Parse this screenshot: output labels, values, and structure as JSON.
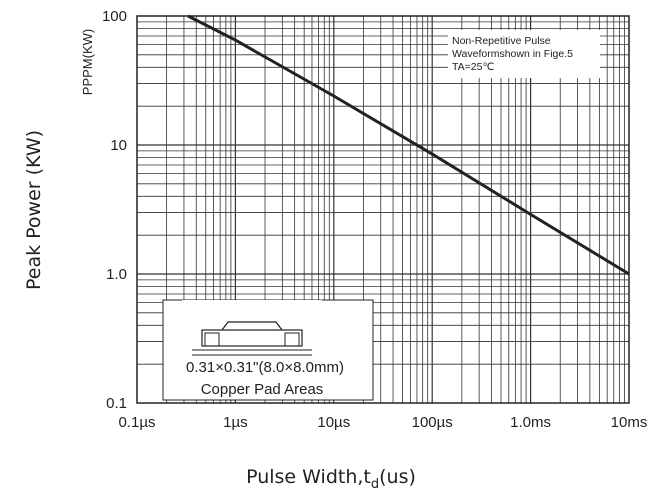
{
  "chart_data": {
    "type": "line",
    "title": "",
    "xlabel": "Pulse Width,t",
    "xlabel_subscript": "d",
    "xlabel_suffix": "(us)",
    "ylabel": "Peak Power (KW)",
    "ylabel_top": "PPPM(KW)",
    "x_scale": "log",
    "y_scale": "log",
    "xlim_us": [
      0.1,
      10000
    ],
    "ylim_kw": [
      0.1,
      100
    ],
    "x_ticks": [
      {
        "value_us": 0.1,
        "label": "0.1µs"
      },
      {
        "value_us": 1,
        "label": "1µs"
      },
      {
        "value_us": 10,
        "label": "10µs"
      },
      {
        "value_us": 100,
        "label": "100µs"
      },
      {
        "value_us": 1000,
        "label": "1.0ms"
      },
      {
        "value_us": 10000,
        "label": "10ms"
      }
    ],
    "y_ticks": [
      {
        "value_kw": 100,
        "label": "100"
      },
      {
        "value_kw": 10,
        "label": "10"
      },
      {
        "value_kw": 1,
        "label": "1.0"
      },
      {
        "value_kw": 0.1,
        "label": "0.1"
      }
    ],
    "grid": true,
    "series": [
      {
        "x_us": [
          0.33,
          1,
          10,
          100,
          1000,
          10000
        ],
        "y_kw": [
          100,
          65,
          24,
          8.5,
          2.9,
          1.0
        ]
      }
    ],
    "annotations": {
      "note_lines": [
        "Non-Repetitive Pulse",
        "Waveformshown in Fige.5",
        "TA=25℃"
      ],
      "inset_lines": [
        "0.31×0.31\"(8.0×8.0mm)",
        "Copper Pad Areas"
      ]
    }
  }
}
